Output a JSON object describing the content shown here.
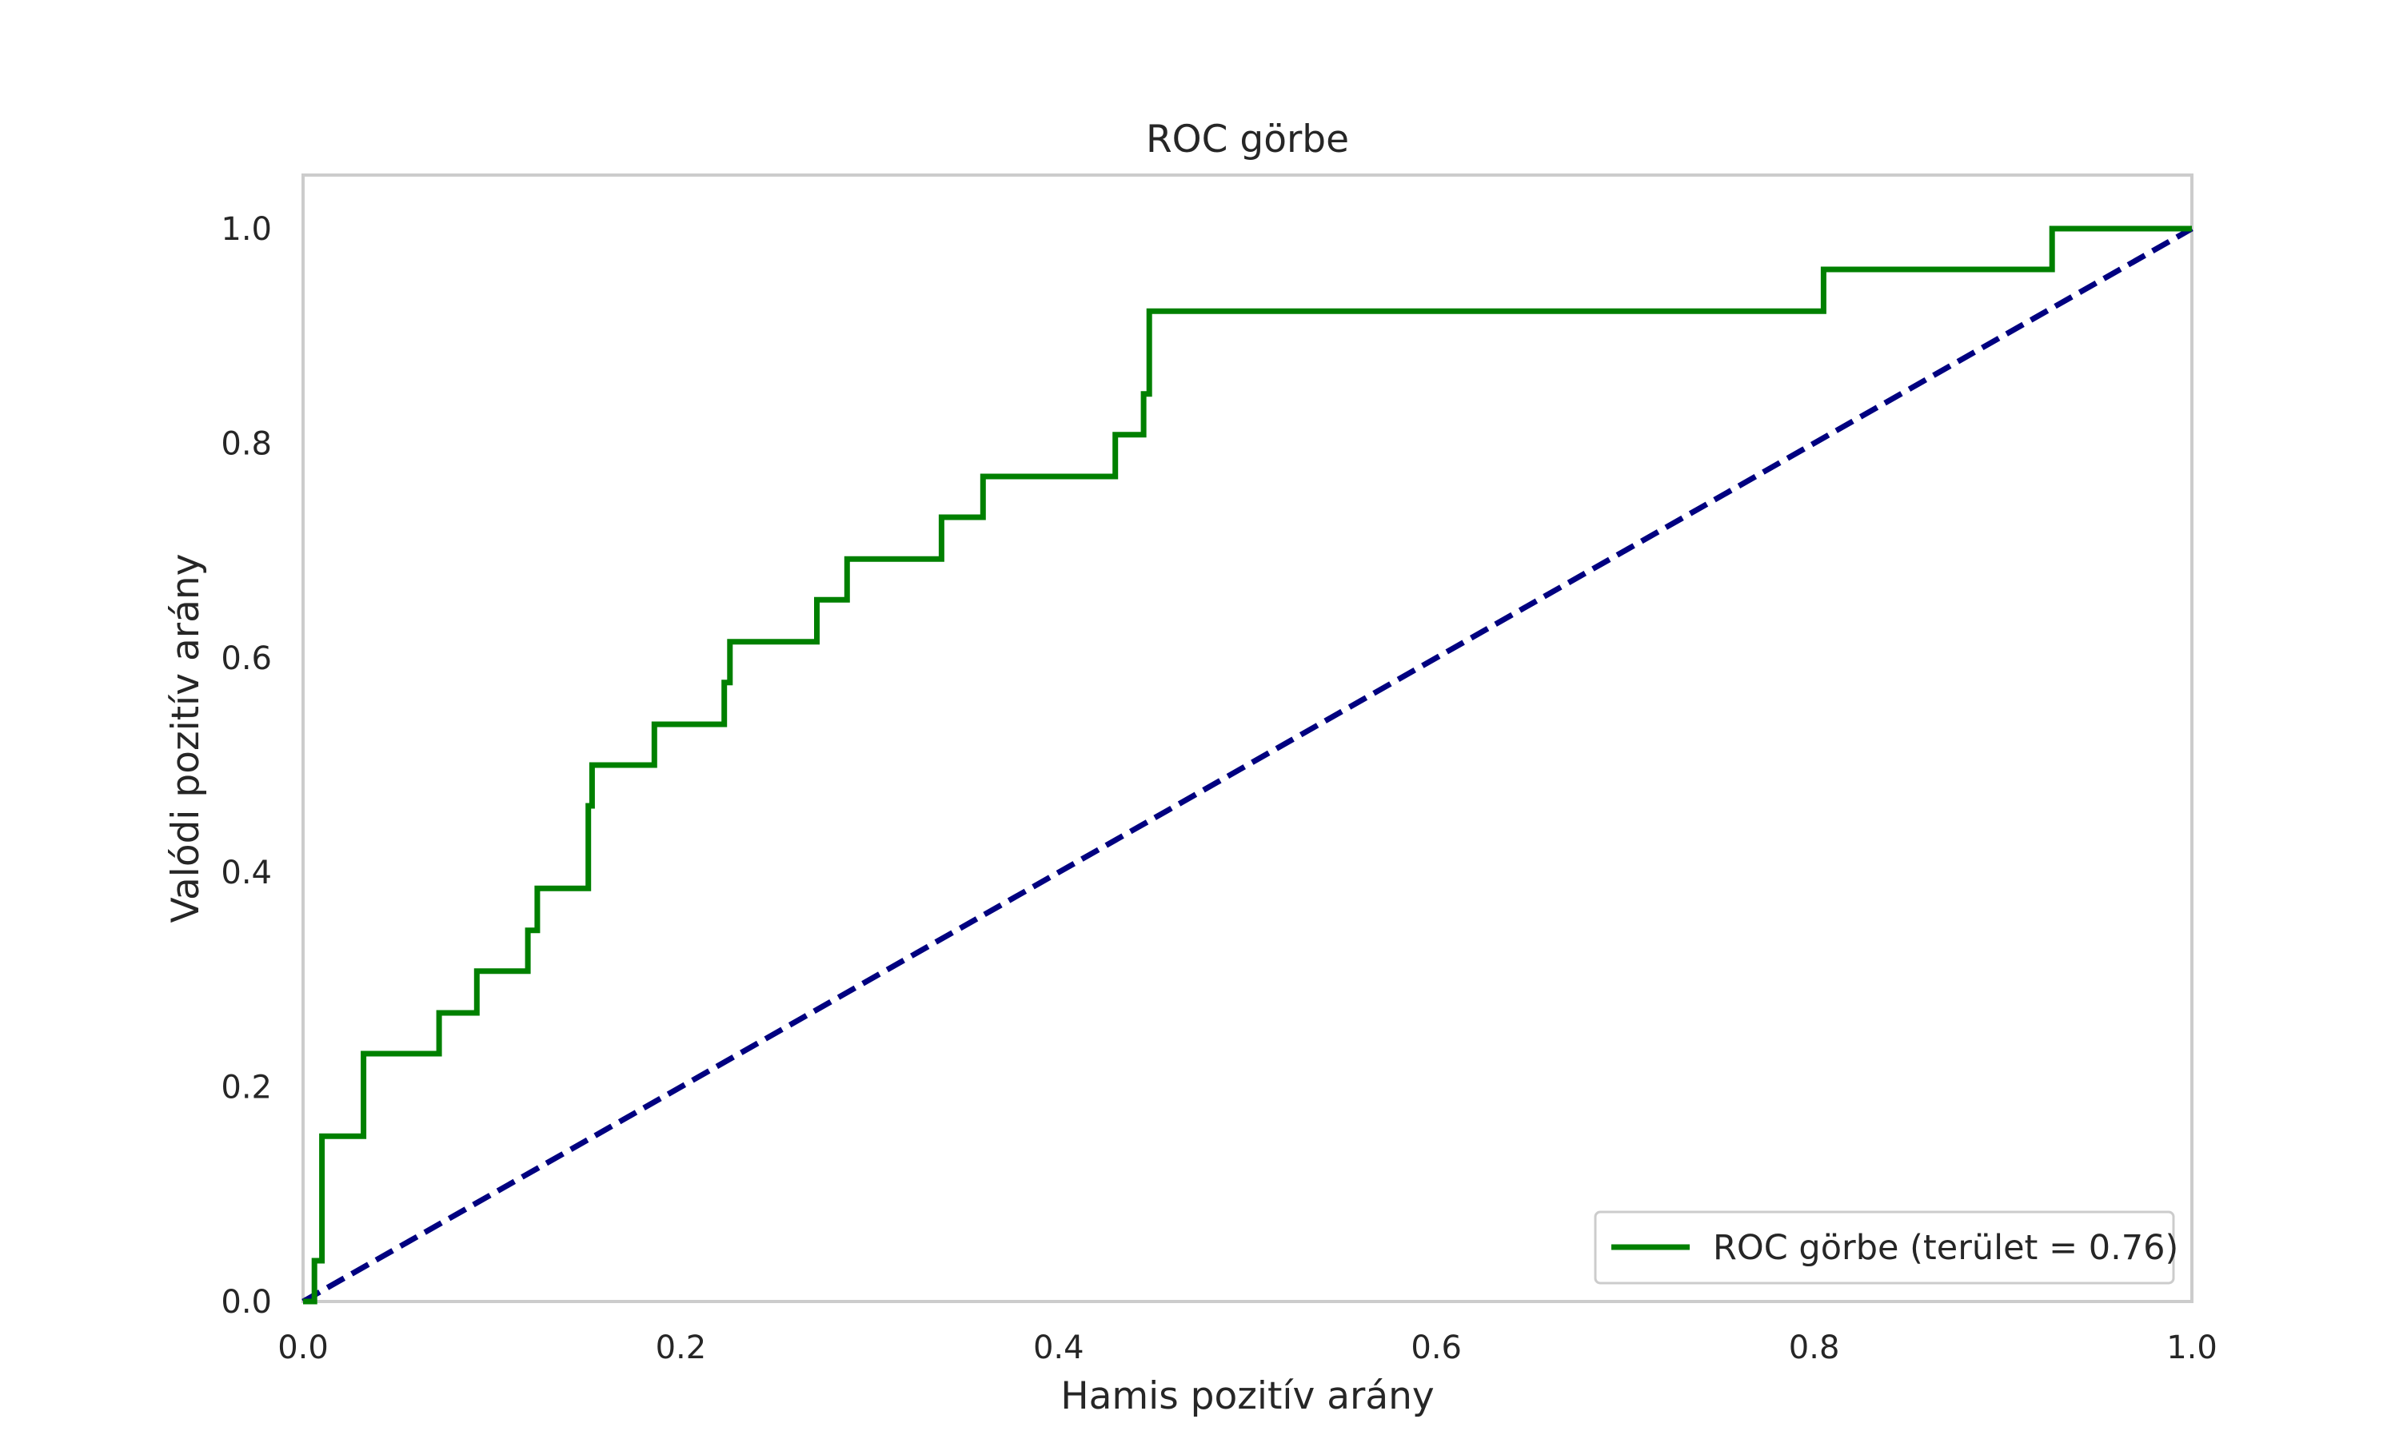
{
  "chart_data": {
    "type": "line",
    "title": "ROC görbe",
    "xlabel": "Hamis pozitív arány",
    "ylabel": "Valódi pozitív arány",
    "xlim": [
      0.0,
      1.0
    ],
    "ylim": [
      0.0,
      1.05
    ],
    "x_ticks": [
      0.0,
      0.2,
      0.4,
      0.6,
      0.8,
      1.0
    ],
    "y_ticks": [
      0.0,
      0.2,
      0.4,
      0.6,
      0.8,
      1.0
    ],
    "x_tick_labels": [
      "0.0",
      "0.2",
      "0.4",
      "0.6",
      "0.8",
      "1.0"
    ],
    "y_tick_labels": [
      "0.0",
      "0.2",
      "0.4",
      "0.6",
      "0.8",
      "1.0"
    ],
    "grid": false,
    "legend_position": "lower right",
    "series": [
      {
        "name": "ROC görbe (terület = 0.76)",
        "color": "#008000",
        "style": "solid",
        "x": [
          0.0,
          0.006,
          0.006,
          0.01,
          0.01,
          0.032,
          0.032,
          0.072,
          0.072,
          0.092,
          0.092,
          0.119,
          0.119,
          0.124,
          0.124,
          0.151,
          0.151,
          0.153,
          0.153,
          0.186,
          0.186,
          0.223,
          0.223,
          0.226,
          0.226,
          0.272,
          0.272,
          0.288,
          0.288,
          0.338,
          0.338,
          0.36,
          0.36,
          0.43,
          0.43,
          0.445,
          0.445,
          0.448,
          0.448,
          0.805,
          0.805,
          0.926,
          0.926,
          1.0
        ],
        "y": [
          0.0,
          0.0,
          0.038,
          0.038,
          0.154,
          0.154,
          0.231,
          0.231,
          0.269,
          0.269,
          0.308,
          0.308,
          0.346,
          0.346,
          0.385,
          0.385,
          0.462,
          0.462,
          0.5,
          0.5,
          0.538,
          0.538,
          0.577,
          0.577,
          0.615,
          0.615,
          0.654,
          0.654,
          0.692,
          0.692,
          0.731,
          0.731,
          0.769,
          0.769,
          0.808,
          0.808,
          0.846,
          0.846,
          0.923,
          0.923,
          0.962,
          0.962,
          1.0,
          1.0
        ]
      },
      {
        "name": "",
        "color": "#000080",
        "style": "dashed",
        "x": [
          0.0,
          1.0
        ],
        "y": [
          0.0,
          1.0
        ]
      }
    ]
  }
}
